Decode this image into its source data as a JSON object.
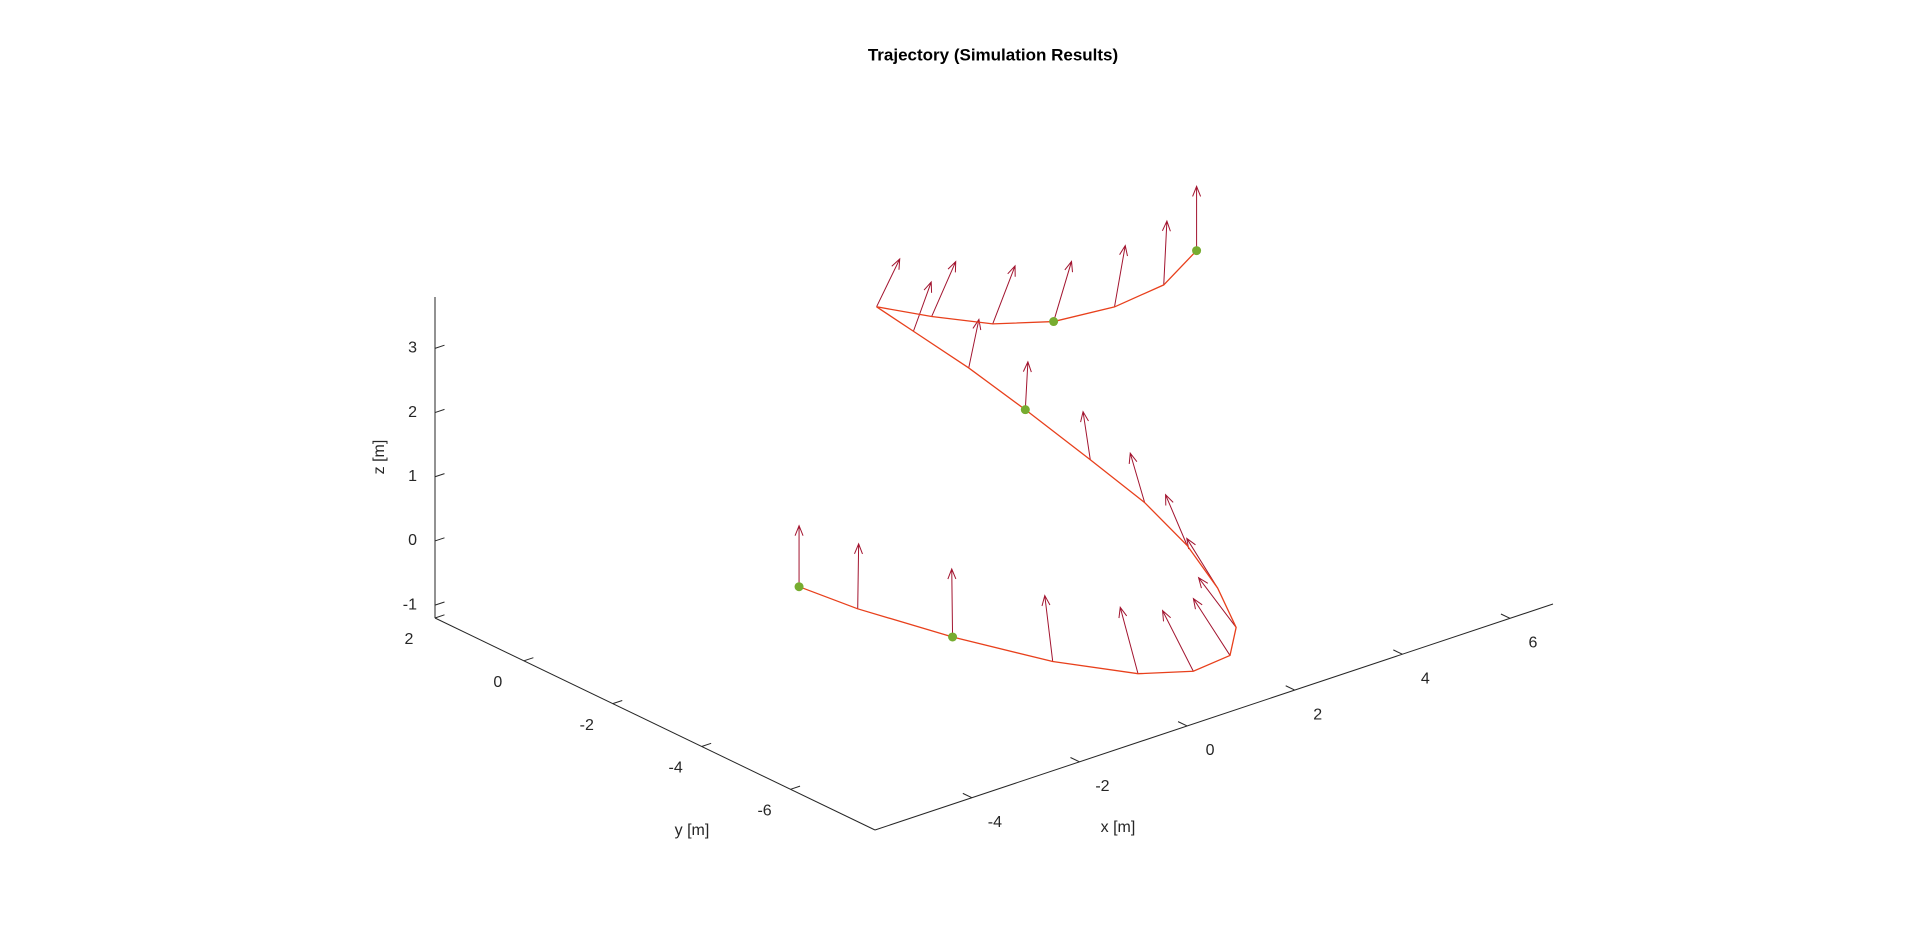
{
  "chart_data": {
    "type": "trajectory3d",
    "title": "Trajectory (Simulation Results)",
    "xlabel": "x [m]",
    "ylabel": "y [m]",
    "zlabel": "z [m]",
    "xlim": [
      -5.8,
      6.8
    ],
    "ylim": [
      -7.9,
      2
    ],
    "zlim": [
      -1.2,
      3.8
    ],
    "xticks": [
      -4,
      -2,
      0,
      2,
      4,
      6
    ],
    "yticks": [
      -6,
      -4,
      -2,
      0,
      2
    ],
    "zticks": [
      -1,
      0,
      1,
      2,
      3
    ],
    "trajectory": {
      "color": "#e8401c",
      "x": [
        -1.38,
        -1.24,
        -0.84,
        -0.3,
        0.36,
        0.95,
        1.64,
        2.2,
        2.6,
        2.8,
        2.87,
        2.81,
        2.8,
        2.69,
        2.48,
        2.34,
        2.43,
        2.64,
        3.07,
        3.78,
        4.53,
        5.38
      ],
      "y": [
        -0.84,
        -1.99,
        -3.64,
        -5.24,
        -6.36,
        -6.89,
        -6.88,
        -6.34,
        -5.44,
        -4.51,
        -3.47,
        -2.32,
        -0.87,
        0.27,
        1.26,
        1.92,
        0.79,
        -0.33,
        -1.18,
        -1.69,
        -1.89,
        -1.6
      ],
      "z": [
        -1.0,
        -1.0,
        -1.0,
        -1.0,
        -1.0,
        -0.95,
        -0.9,
        -0.8,
        -0.6,
        -0.3,
        0.0,
        0.3,
        0.6,
        0.9,
        1.2,
        1.4,
        1.6,
        1.8,
        2.0,
        2.2,
        2.4,
        2.6
      ]
    },
    "thrust": {
      "color": "#a2142f",
      "u": [
        0,
        0.1,
        0.15,
        0.1,
        0,
        -0.2,
        -0.35,
        -0.45,
        -0.45,
        -0.4,
        -0.35,
        -0.3,
        -0.2,
        -0.1,
        0,
        0.1,
        0.2,
        0.25,
        0.25,
        0.2,
        0.1,
        0
      ],
      "v": [
        0,
        0.1,
        0.2,
        0.3,
        0.4,
        0.45,
        0.4,
        0.3,
        0.15,
        0,
        -0.1,
        -0.2,
        -0.3,
        -0.35,
        -0.4,
        -0.4,
        -0.3,
        -0.2,
        -0.1,
        0,
        0.05,
        0
      ],
      "w": [
        0.95,
        0.95,
        0.95,
        0.9,
        0.9,
        0.85,
        0.85,
        0.8,
        0.85,
        0.9,
        0.9,
        0.9,
        0.9,
        0.9,
        0.9,
        0.85,
        0.9,
        0.9,
        0.9,
        0.9,
        0.95,
        1
      ]
    },
    "waypoints": {
      "color": "#77ac30",
      "x": [
        -1.38,
        -0.84,
        2.8,
        3.07,
        5.38
      ],
      "y": [
        -0.84,
        -3.64,
        -0.87,
        -1.18,
        -1.6
      ],
      "z": [
        -1.0,
        -1.0,
        0.6,
        2.0,
        2.6
      ]
    }
  }
}
